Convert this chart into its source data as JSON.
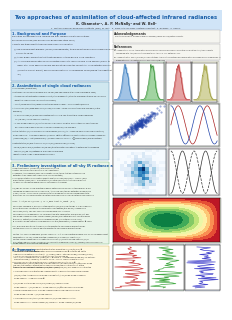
{
  "title": "Two approaches of assimilation of cloud-affected infrared radiances",
  "authors": "K. Okamoto¹², A. P. McNally² and W. Bell¹",
  "affiliations": "1. Meteorological Research Institute (MRI) of JMA,  2. NWP-SAF ECMWF visiting scientist, 3. ECMWF, 4. UKMO",
  "bg_color": "#ffffff",
  "title_color": "#1a5fa8",
  "title_bg": "#d0e4f7",
  "section1_title": "1. Background and Purpose",
  "section2_title": "2. Assimilation of single cloud radiances",
  "section3_title": "3. Preliminary investigation of all-sky IR radiance assimilation",
  "section4_title": "4. Summary",
  "section1_color": "#d0e4f7",
  "section2_color": "#d0e8f0",
  "section3_color": "#e8f4e8",
  "section4_color": "#fff8e0",
  "ack_color": "#f5f5f5",
  "right_panel_color": "#f5f5f5"
}
